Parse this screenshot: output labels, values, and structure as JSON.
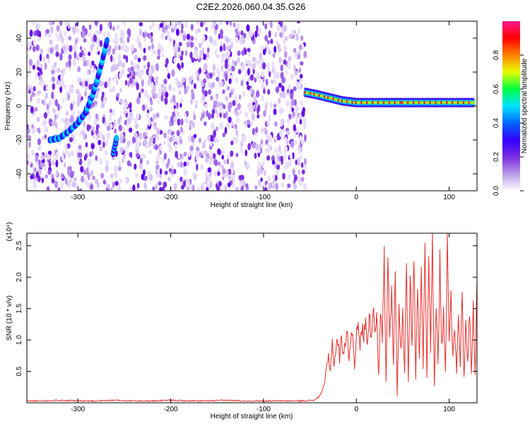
{
  "title": "C2E2.2026.060.04.35.G26",
  "colors": {
    "snr_line": "#e8302c",
    "axis": "#000000",
    "background": "#ffffff"
  },
  "chart_data": [
    {
      "type": "heatmap",
      "title": "C2E2.2026.060.04.35.G26",
      "xlabel": "Height of straight line (km)",
      "ylabel": "Frequency (Hz)",
      "xlim": [
        -355,
        130
      ],
      "ylim": [
        -50,
        50
      ],
      "xticks": [
        -300,
        -200,
        -100,
        0,
        100
      ],
      "yticks": [
        -40,
        -20,
        0,
        20,
        40
      ],
      "data_extent_x": [
        -355,
        -57
      ],
      "noise_fill_x_range": [
        -355,
        -55
      ],
      "occultation_start_km": -57,
      "tone_track": [
        {
          "x": -330,
          "y": -20
        },
        {
          "x": -320,
          "y": -19
        },
        {
          "x": -310,
          "y": -15
        },
        {
          "x": -300,
          "y": -10
        },
        {
          "x": -292,
          "y": -4
        },
        {
          "x": -285,
          "y": 5
        },
        {
          "x": -280,
          "y": 14
        },
        {
          "x": -274,
          "y": 26
        },
        {
          "x": -268,
          "y": 40
        }
      ],
      "secondary_track": [
        {
          "x": -262,
          "y": -28
        },
        {
          "x": -258,
          "y": -18
        }
      ],
      "stable_tone": [
        {
          "x": -55,
          "y": 8
        },
        {
          "x": -45,
          "y": 7
        },
        {
          "x": -30,
          "y": 5
        },
        {
          "x": -15,
          "y": 3
        },
        {
          "x": 0,
          "y": 2
        },
        {
          "x": 50,
          "y": 2
        },
        {
          "x": 128,
          "y": 2
        }
      ],
      "colorbar": {
        "label": "Normalized spectral amplitude",
        "range": [
          0.0,
          1.0
        ],
        "ticks": [
          "0.0",
          "0.2",
          "0.4",
          "0.6",
          "0.8"
        ],
        "tick_values": [
          0.0,
          0.2,
          0.4,
          0.6,
          0.8
        ],
        "colormap": [
          "#ffffff",
          "#b89be8",
          "#7a2ce0",
          "#3300ff",
          "#0066ff",
          "#00e5ff",
          "#00ff40",
          "#e6ff00",
          "#ff8000",
          "#ff0000",
          "#ff1a8c"
        ]
      }
    },
    {
      "type": "line",
      "xlabel": "Height of straight line (km)",
      "ylabel": "SNR (10 * v/v)",
      "yscale_label": "(x10⁴)",
      "xlim": [
        -355,
        130
      ],
      "ylim": [
        0,
        2.7
      ],
      "xticks": [
        -300,
        -200,
        -100,
        0,
        100
      ],
      "yticks": [
        0.5,
        1.0,
        1.5,
        2.0,
        2.5
      ],
      "ytick_labels": [
        "0.5",
        "1.0",
        "1.5",
        "2.0",
        "2.5"
      ],
      "series": [
        {
          "name": "SNR",
          "x": [
            -355,
            -340,
            -320,
            -300,
            -280,
            -260,
            -240,
            -220,
            -200,
            -180,
            -160,
            -140,
            -120,
            -100,
            -80,
            -60,
            -45,
            -40,
            -35,
            -32,
            -30,
            -28,
            -26,
            -24,
            -22,
            -20,
            -18,
            -16,
            -14,
            -12,
            -10,
            -8,
            -6,
            -4,
            -2,
            0,
            2,
            4,
            6,
            8,
            10,
            12,
            14,
            16,
            18,
            20,
            22,
            24,
            26,
            28,
            30,
            32,
            34,
            36,
            38,
            40,
            42,
            44,
            46,
            48,
            50,
            52,
            54,
            56,
            58,
            60,
            62,
            64,
            66,
            68,
            70,
            72,
            74,
            76,
            78,
            80,
            82,
            84,
            86,
            88,
            90,
            92,
            94,
            96,
            98,
            100,
            102,
            104,
            106,
            108,
            110,
            112,
            114,
            116,
            118,
            120,
            122,
            124,
            126,
            128,
            130
          ],
          "y": [
            0.03,
            0.03,
            0.04,
            0.03,
            0.03,
            0.04,
            0.03,
            0.03,
            0.04,
            0.03,
            0.03,
            0.04,
            0.03,
            0.03,
            0.03,
            0.03,
            0.04,
            0.1,
            0.25,
            0.55,
            0.75,
            0.5,
            1.0,
            0.6,
            0.85,
            1.0,
            0.7,
            1.05,
            0.8,
            0.95,
            1.1,
            0.75,
            1.0,
            1.15,
            0.6,
            1.05,
            1.2,
            0.9,
            1.2,
            1.05,
            1.3,
            1.0,
            1.35,
            1.1,
            1.5,
            1.2,
            1.45,
            0.4,
            1.4,
            0.95,
            2.3,
            0.3,
            2.2,
            1.0,
            1.8,
            0.6,
            2.15,
            0.1,
            1.6,
            0.8,
            1.4,
            0.5,
            2.4,
            0.3,
            2.0,
            0.9,
            2.5,
            0.4,
            1.8,
            0.7,
            2.3,
            0.5,
            2.7,
            0.4,
            2.5,
            0.8,
            2.55,
            0.3,
            1.7,
            0.6,
            2.2,
            0.9,
            1.5,
            0.5,
            2.5,
            1.0,
            1.8,
            0.7,
            1.2,
            0.5,
            1.3,
            0.6,
            1.7,
            0.4,
            1.3,
            0.6,
            1.5,
            0.45,
            1.6,
            0.4,
            1.95
          ]
        }
      ]
    }
  ]
}
